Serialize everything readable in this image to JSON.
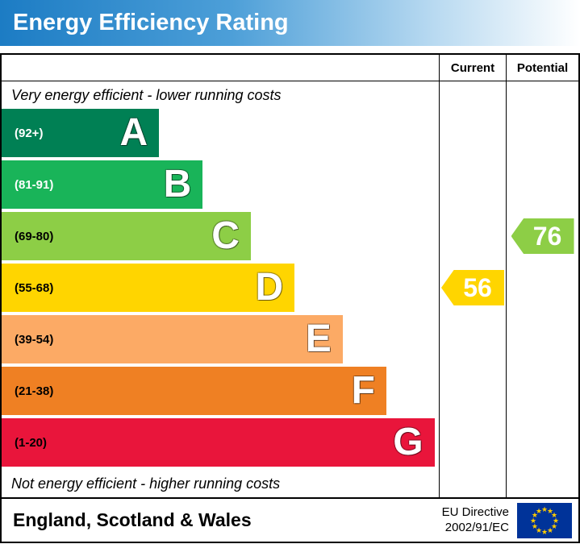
{
  "header": {
    "title": "Energy Efficiency Rating"
  },
  "columns": {
    "current": "Current",
    "potential": "Potential"
  },
  "notes": {
    "top": "Very energy efficient - lower running costs",
    "bottom": "Not energy efficient - higher running costs"
  },
  "bands": [
    {
      "letter": "A",
      "range": "(92+)",
      "color": "#008054",
      "text_color": "#ffffff",
      "width_pct": 36
    },
    {
      "letter": "B",
      "range": "(81-91)",
      "color": "#19b459",
      "text_color": "#ffffff",
      "width_pct": 46
    },
    {
      "letter": "C",
      "range": "(69-80)",
      "color": "#8dce46",
      "text_color": "#000000",
      "width_pct": 57
    },
    {
      "letter": "D",
      "range": "(55-68)",
      "color": "#ffd500",
      "text_color": "#000000",
      "width_pct": 67
    },
    {
      "letter": "E",
      "range": "(39-54)",
      "color": "#fcaa65",
      "text_color": "#000000",
      "width_pct": 78
    },
    {
      "letter": "F",
      "range": "(21-38)",
      "color": "#ef8023",
      "text_color": "#000000",
      "width_pct": 88
    },
    {
      "letter": "G",
      "range": "(1-20)",
      "color": "#e9153b",
      "text_color": "#000000",
      "width_pct": 99
    }
  ],
  "ratings": {
    "current": {
      "value": "56",
      "band": "D",
      "color": "#ffd500"
    },
    "potential": {
      "value": "76",
      "band": "C",
      "color": "#8dce46"
    }
  },
  "footer": {
    "region": "England, Scotland & Wales",
    "directive_line1": "EU Directive",
    "directive_line2": "2002/91/EC"
  },
  "chart_data": {
    "type": "bar",
    "title": "Energy Efficiency Rating",
    "categories": [
      "A",
      "B",
      "C",
      "D",
      "E",
      "F",
      "G"
    ],
    "band_ranges": [
      "92+",
      "81-91",
      "69-80",
      "55-68",
      "39-54",
      "21-38",
      "1-20"
    ],
    "band_colors": [
      "#008054",
      "#19b459",
      "#8dce46",
      "#ffd500",
      "#fcaa65",
      "#ef8023",
      "#e9153b"
    ],
    "bar_width_pct": [
      36,
      46,
      57,
      67,
      78,
      88,
      99
    ],
    "current_rating": 56,
    "current_band": "D",
    "potential_rating": 76,
    "potential_band": "C",
    "top_note": "Very energy efficient - lower running costs",
    "bottom_note": "Not energy efficient - higher running costs",
    "region": "England, Scotland & Wales",
    "directive": "EU Directive 2002/91/EC"
  }
}
